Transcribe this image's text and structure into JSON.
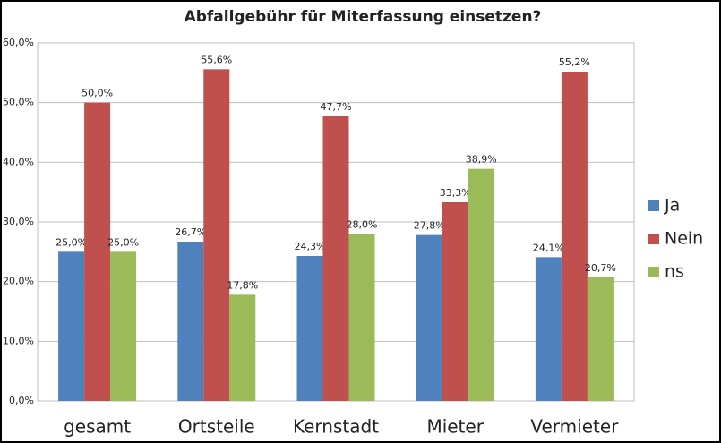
{
  "chart_data": {
    "type": "bar",
    "title": "Abfallgebühr für Miterfassung einsetzen?",
    "categories": [
      "gesamt",
      "Ortsteile",
      "Kernstadt",
      "Mieter",
      "Vermieter"
    ],
    "series": [
      {
        "name": "Ja",
        "color": "#4f81bd",
        "values": [
          25.0,
          26.7,
          24.3,
          27.8,
          24.1
        ],
        "value_labels": [
          "25,0%",
          "26,7%",
          "24,3%",
          "27,8%",
          "24,1%"
        ]
      },
      {
        "name": "Nein",
        "color": "#c0504d",
        "values": [
          50.0,
          55.6,
          47.7,
          33.3,
          55.2
        ],
        "value_labels": [
          "50,0%",
          "55,6%",
          "47,7%",
          "33,3%",
          "55,2%"
        ]
      },
      {
        "name": "ns",
        "color": "#9bbb59",
        "values": [
          25.0,
          17.8,
          28.0,
          38.9,
          20.7
        ],
        "value_labels": [
          "25,0%",
          "17,8%",
          "28,0%",
          "38,9%",
          "20,7%"
        ]
      }
    ],
    "ylim": [
      0,
      60
    ],
    "yticks": [
      {
        "value": 0,
        "label": "0,0%"
      },
      {
        "value": 10,
        "label": "10,0%"
      },
      {
        "value": 20,
        "label": "20,0%"
      },
      {
        "value": 30,
        "label": "30,0%"
      },
      {
        "value": 40,
        "label": "40,0%"
      },
      {
        "value": 50,
        "label": "50,0%"
      },
      {
        "value": 60,
        "label": "60,0%"
      }
    ],
    "grid": true,
    "legend": "right"
  }
}
